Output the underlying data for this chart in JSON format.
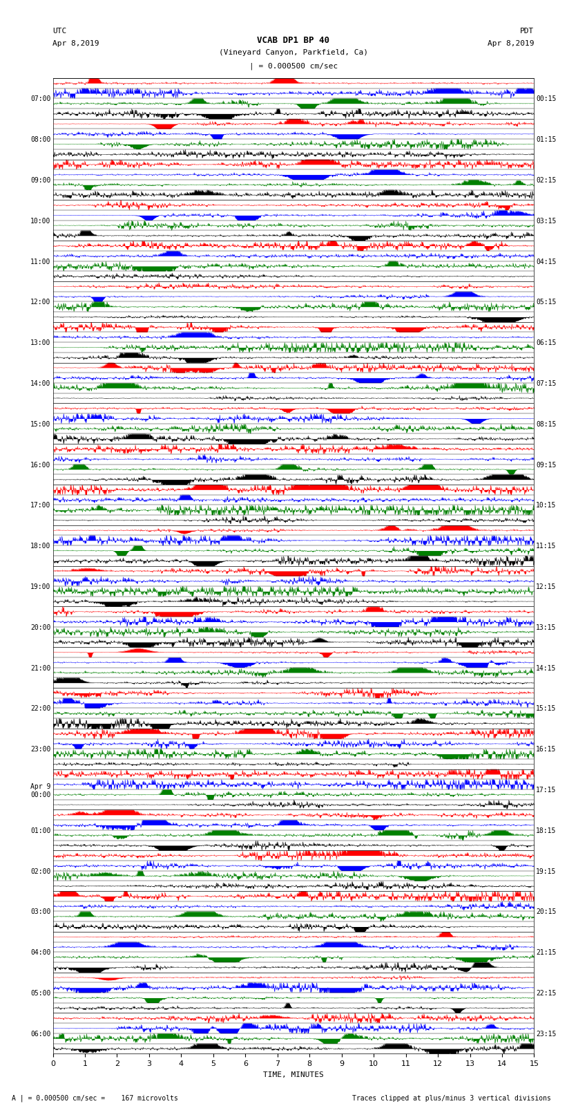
{
  "title_line1": "VCAB DP1 BP 40",
  "title_line2": "(Vineyard Canyon, Parkfield, Ca)",
  "scale_text": "| = 0.000500 cm/sec",
  "left_label_line1": "UTC",
  "left_label_line2": "Apr 8,2019",
  "right_label_line1": "PDT",
  "right_label_line2": "Apr 8,2019",
  "bottom_left": "A | = 0.000500 cm/sec =    167 microvolts",
  "bottom_right": "Traces clipped at plus/minus 3 vertical divisions",
  "xlabel": "TIME, MINUTES",
  "utc_times": [
    "07:00",
    "08:00",
    "09:00",
    "10:00",
    "11:00",
    "12:00",
    "13:00",
    "14:00",
    "15:00",
    "16:00",
    "17:00",
    "18:00",
    "19:00",
    "20:00",
    "21:00",
    "22:00",
    "23:00",
    "Apr 9\n00:00",
    "01:00",
    "02:00",
    "03:00",
    "04:00",
    "05:00",
    "06:00"
  ],
  "pdt_times": [
    "00:15",
    "01:15",
    "02:15",
    "03:15",
    "04:15",
    "05:15",
    "06:15",
    "07:15",
    "08:15",
    "09:15",
    "10:15",
    "11:15",
    "12:15",
    "13:15",
    "14:15",
    "15:15",
    "16:15",
    "17:15",
    "18:15",
    "19:15",
    "20:15",
    "21:15",
    "22:15",
    "23:15"
  ],
  "n_rows": 24,
  "n_cols": 800,
  "bg_color": "#ffffff",
  "band_colors": [
    "red",
    "blue",
    "green",
    "black"
  ],
  "bands_per_hour": 4,
  "figsize": [
    8.5,
    16.13
  ],
  "dpi": 100,
  "xmax": 15
}
